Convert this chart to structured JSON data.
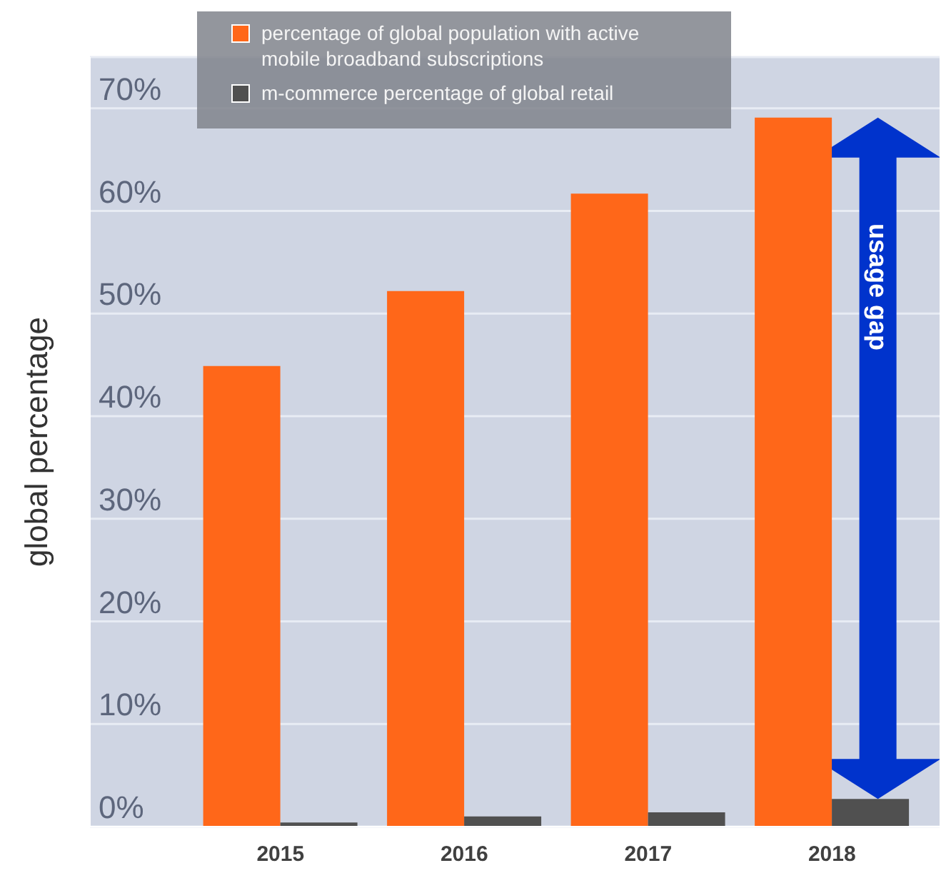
{
  "chart_data": {
    "type": "bar",
    "ylabel": "global percentage",
    "categories": [
      "2015",
      "2016",
      "2017",
      "2018"
    ],
    "series": [
      {
        "name": "percentage of global population with active mobile broadband subscriptions",
        "color": "#ff6719",
        "values": [
          44.9,
          52.2,
          61.7,
          69.1
        ]
      },
      {
        "name": "m-commerce percentage of global retail",
        "color": "#505050",
        "values": [
          0.4,
          1.0,
          1.4,
          2.7
        ]
      }
    ],
    "ylim": [
      0,
      75
    ],
    "yticks": [
      {
        "value": 0,
        "label": "0%"
      },
      {
        "value": 10,
        "label": "10%"
      },
      {
        "value": 20,
        "label": "20%"
      },
      {
        "value": 30,
        "label": "30%"
      },
      {
        "value": 40,
        "label": "40%"
      },
      {
        "value": 50,
        "label": "50%"
      },
      {
        "value": 60,
        "label": "60%"
      },
      {
        "value": 70,
        "label": "70%"
      }
    ],
    "grid": "y",
    "legend": "top left",
    "annotations": [
      {
        "text": "usage gap",
        "x": "2018"
      }
    ]
  }
}
